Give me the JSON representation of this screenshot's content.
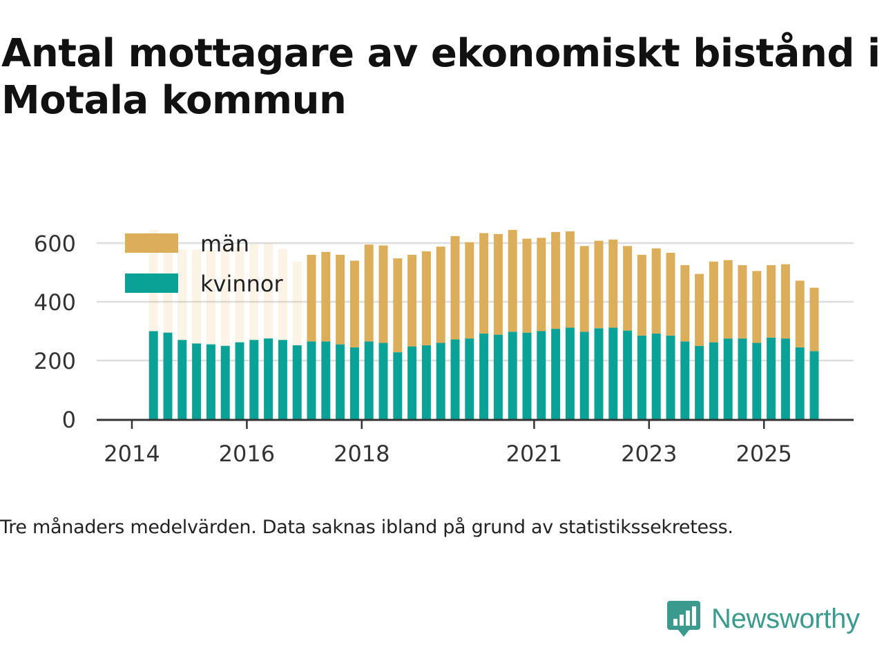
{
  "title": "Antal mottagare av ekonomiskt bistånd i Motala kommun",
  "note": "Tre månaders medelvärden. Data saknas ibland på grund av statistikssekretess.",
  "brand": {
    "name": "Newsworthy",
    "icon": "newsworthy-logo-icon",
    "color": "#3a9a8e"
  },
  "colors": {
    "men": "#dcae5a",
    "women": "#0aa296",
    "grid": "#dddddd",
    "axis": "#333333"
  },
  "chart_data": {
    "type": "bar",
    "stacked": true,
    "title": "Antal mottagare av ekonomiskt bistånd i Motala kommun",
    "xlabel": "",
    "ylabel": "",
    "ylim": [
      0,
      650
    ],
    "yticks": [
      0,
      200,
      400,
      600
    ],
    "xtick_labels": [
      {
        "label": "2014",
        "x": 2014.0
      },
      {
        "label": "2016",
        "x": 2016.0
      },
      {
        "label": "2018",
        "x": 2018.0
      },
      {
        "label": "2021",
        "x": 2021.0
      },
      {
        "label": "2023",
        "x": 2023.0
      },
      {
        "label": "2025",
        "x": 2025.0
      }
    ],
    "legend": [
      {
        "name": "män",
        "series": "men"
      },
      {
        "name": "kvinnor",
        "series": "women"
      }
    ],
    "legend_position": "top-left",
    "categories": [
      "2014-Q2",
      "2014-Q3",
      "2014-Q4",
      "2015-Q1",
      "2015-Q2",
      "2015-Q3",
      "2015-Q4",
      "2016-Q1",
      "2016-Q2",
      "2016-Q3",
      "2016-Q4",
      "2017-Q1",
      "2017-Q2",
      "2017-Q3",
      "2017-Q4",
      "2018-Q1",
      "2018-Q2",
      "2018-Q3",
      "2018-Q4",
      "2019-Q1",
      "2019-Q2",
      "2019-Q3",
      "2019-Q4",
      "2020-Q1",
      "2020-Q2",
      "2020-Q3",
      "2020-Q4",
      "2021-Q1",
      "2021-Q2",
      "2021-Q3",
      "2021-Q4",
      "2022-Q1",
      "2022-Q2",
      "2022-Q3",
      "2022-Q4",
      "2023-Q1",
      "2023-Q2",
      "2023-Q3",
      "2023-Q4",
      "2024-Q1",
      "2024-Q2",
      "2024-Q3",
      "2024-Q4",
      "2025-Q1",
      "2025-Q2",
      "2025-Q3",
      "2025-Q4"
    ],
    "x": [
      2014.375,
      2014.625,
      2014.875,
      2015.125,
      2015.375,
      2015.625,
      2015.875,
      2016.125,
      2016.375,
      2016.625,
      2016.875,
      2017.125,
      2017.375,
      2017.625,
      2017.875,
      2018.125,
      2018.375,
      2018.625,
      2018.875,
      2019.125,
      2019.375,
      2019.625,
      2019.875,
      2020.125,
      2020.375,
      2020.625,
      2020.875,
      2021.125,
      2021.375,
      2021.625,
      2021.875,
      2022.125,
      2022.375,
      2022.625,
      2022.875,
      2023.125,
      2023.375,
      2023.625,
      2023.875,
      2024.125,
      2024.375,
      2024.625,
      2024.875,
      2025.125,
      2025.375,
      2025.625,
      2025.875
    ],
    "series": [
      {
        "name": "kvinnor",
        "key": "women",
        "values": [
          300,
          295,
          270,
          258,
          255,
          250,
          262,
          270,
          275,
          270,
          252,
          265,
          265,
          255,
          245,
          265,
          260,
          228,
          248,
          252,
          260,
          272,
          275,
          292,
          288,
          298,
          295,
          300,
          308,
          312,
          298,
          310,
          312,
          302,
          285,
          292,
          285,
          265,
          250,
          262,
          275,
          275,
          260,
          278,
          275,
          245,
          232
        ]
      },
      {
        "name": "män",
        "key": "men",
        "values": [
          345,
          310,
          308,
          320,
          322,
          335,
          325,
          328,
          325,
          310,
          285,
          295,
          305,
          305,
          295,
          330,
          332,
          320,
          312,
          320,
          328,
          352,
          328,
          342,
          343,
          347,
          320,
          318,
          330,
          328,
          292,
          298,
          300,
          288,
          275,
          290,
          282,
          260,
          245,
          275,
          267,
          250,
          245,
          247,
          253,
          227,
          216
        ]
      }
    ],
    "faded_categories": [
      "2014-Q2",
      "2014-Q3",
      "2014-Q4",
      "2015-Q1",
      "2015-Q2",
      "2015-Q3",
      "2015-Q4",
      "2016-Q1",
      "2016-Q2",
      "2016-Q3",
      "2016-Q4"
    ]
  }
}
